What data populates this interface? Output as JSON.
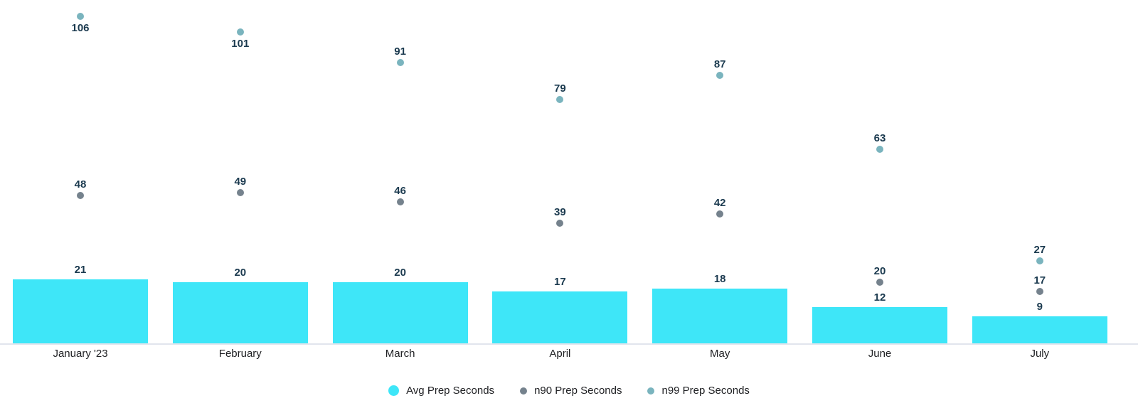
{
  "chart_data": {
    "type": "combo",
    "categories": [
      "January '23",
      "February",
      "March",
      "April",
      "May",
      "June",
      "July"
    ],
    "series": [
      {
        "name": "Avg Prep Seconds",
        "type": "bar",
        "color": "#3EE6F8",
        "values": [
          21,
          20,
          20,
          17,
          18,
          12,
          9
        ]
      },
      {
        "name": "n90 Prep Seconds",
        "type": "scatter",
        "color": "#75828D",
        "values": [
          48,
          49,
          46,
          39,
          42,
          20,
          17
        ]
      },
      {
        "name": "n99 Prep Seconds",
        "type": "scatter",
        "color": "#7AB4BE",
        "values": [
          106,
          101,
          91,
          79,
          87,
          63,
          27
        ]
      }
    ],
    "title": "",
    "xlabel": "",
    "ylabel": "",
    "ylim": [
      0,
      112
    ],
    "grid": false,
    "data_labels": true,
    "legend_position": "bottom",
    "label_color": "#1B3A4F",
    "axis_text_color": "#202124",
    "axis_line_color": "#E1E5ED"
  }
}
